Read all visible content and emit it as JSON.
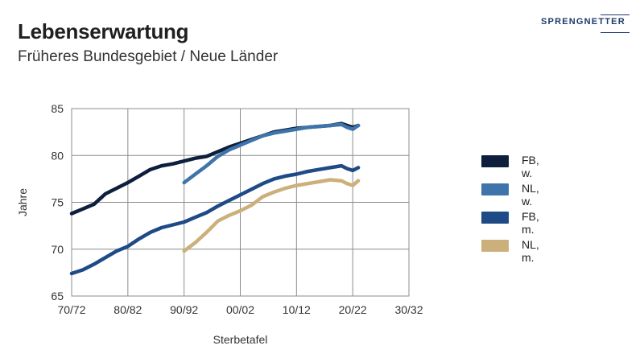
{
  "header": {
    "title": "Lebenserwartung",
    "subtitle": "Früheres Bundesgebiet / Neue Länder"
  },
  "logo": {
    "text": "SPRENGNETTER",
    "color": "#1f3a6b"
  },
  "chart_data": {
    "type": "line",
    "title": "Lebenserwartung",
    "subtitle": "Früheres Bundesgebiet / Neue Länder",
    "xlabel": "Sterbetafel",
    "ylabel": "Jahre",
    "xlim": [
      1971,
      2031
    ],
    "ylim": [
      65,
      85
    ],
    "x_ticks": [
      {
        "x": 1971,
        "label": "70/72"
      },
      {
        "x": 1981,
        "label": "80/82"
      },
      {
        "x": 1991,
        "label": "90/92"
      },
      {
        "x": 2001,
        "label": "00/02"
      },
      {
        "x": 2011,
        "label": "10/12"
      },
      {
        "x": 2021,
        "label": "20/22"
      },
      {
        "x": 2031,
        "label": "30/32"
      }
    ],
    "y_ticks": [
      65,
      70,
      75,
      80,
      85
    ],
    "grid": true,
    "legend_position": "right",
    "series": [
      {
        "name": "FB, w.",
        "color": "#0d1f3c",
        "x": [
          1971,
          1973,
          1975,
          1977,
          1979,
          1981,
          1983,
          1985,
          1987,
          1989,
          1991,
          1993,
          1995,
          1997,
          1999,
          2001,
          2003,
          2005,
          2007,
          2009,
          2011,
          2013,
          2015,
          2017,
          2019,
          2020,
          2021,
          2022
        ],
        "y": [
          73.8,
          74.3,
          74.8,
          75.9,
          76.5,
          77.1,
          77.8,
          78.5,
          78.9,
          79.1,
          79.4,
          79.7,
          79.9,
          80.4,
          80.9,
          81.3,
          81.7,
          82.1,
          82.5,
          82.7,
          82.9,
          83.0,
          83.1,
          83.2,
          83.4,
          83.2,
          83.0,
          83.2
        ]
      },
      {
        "name": "NL, w.",
        "color": "#3f74ab",
        "x": [
          1991,
          1993,
          1995,
          1997,
          1999,
          2001,
          2003,
          2005,
          2007,
          2009,
          2011,
          2013,
          2015,
          2017,
          2019,
          2020,
          2021,
          2022
        ],
        "y": [
          77.1,
          78.0,
          78.9,
          79.9,
          80.6,
          81.1,
          81.6,
          82.1,
          82.4,
          82.6,
          82.8,
          83.0,
          83.1,
          83.2,
          83.3,
          83.0,
          82.8,
          83.2
        ]
      },
      {
        "name": "FB, m.",
        "color": "#1e4a86",
        "x": [
          1971,
          1973,
          1975,
          1977,
          1979,
          1981,
          1983,
          1985,
          1987,
          1989,
          1991,
          1993,
          1995,
          1997,
          1999,
          2001,
          2003,
          2005,
          2007,
          2009,
          2011,
          2013,
          2015,
          2017,
          2019,
          2020,
          2021,
          2022
        ],
        "y": [
          67.4,
          67.8,
          68.4,
          69.1,
          69.8,
          70.3,
          71.1,
          71.8,
          72.3,
          72.6,
          72.9,
          73.4,
          73.9,
          74.6,
          75.2,
          75.8,
          76.4,
          77.0,
          77.5,
          77.8,
          78.0,
          78.3,
          78.5,
          78.7,
          78.9,
          78.6,
          78.4,
          78.7
        ]
      },
      {
        "name": "NL, m.",
        "color": "#ccb07b",
        "x": [
          1991,
          1993,
          1995,
          1997,
          1999,
          2001,
          2003,
          2005,
          2007,
          2009,
          2011,
          2013,
          2015,
          2017,
          2019,
          2020,
          2021,
          2022
        ],
        "y": [
          69.8,
          70.7,
          71.8,
          73.0,
          73.6,
          74.1,
          74.7,
          75.6,
          76.1,
          76.5,
          76.8,
          77.0,
          77.2,
          77.4,
          77.3,
          77.0,
          76.8,
          77.3
        ]
      }
    ]
  }
}
